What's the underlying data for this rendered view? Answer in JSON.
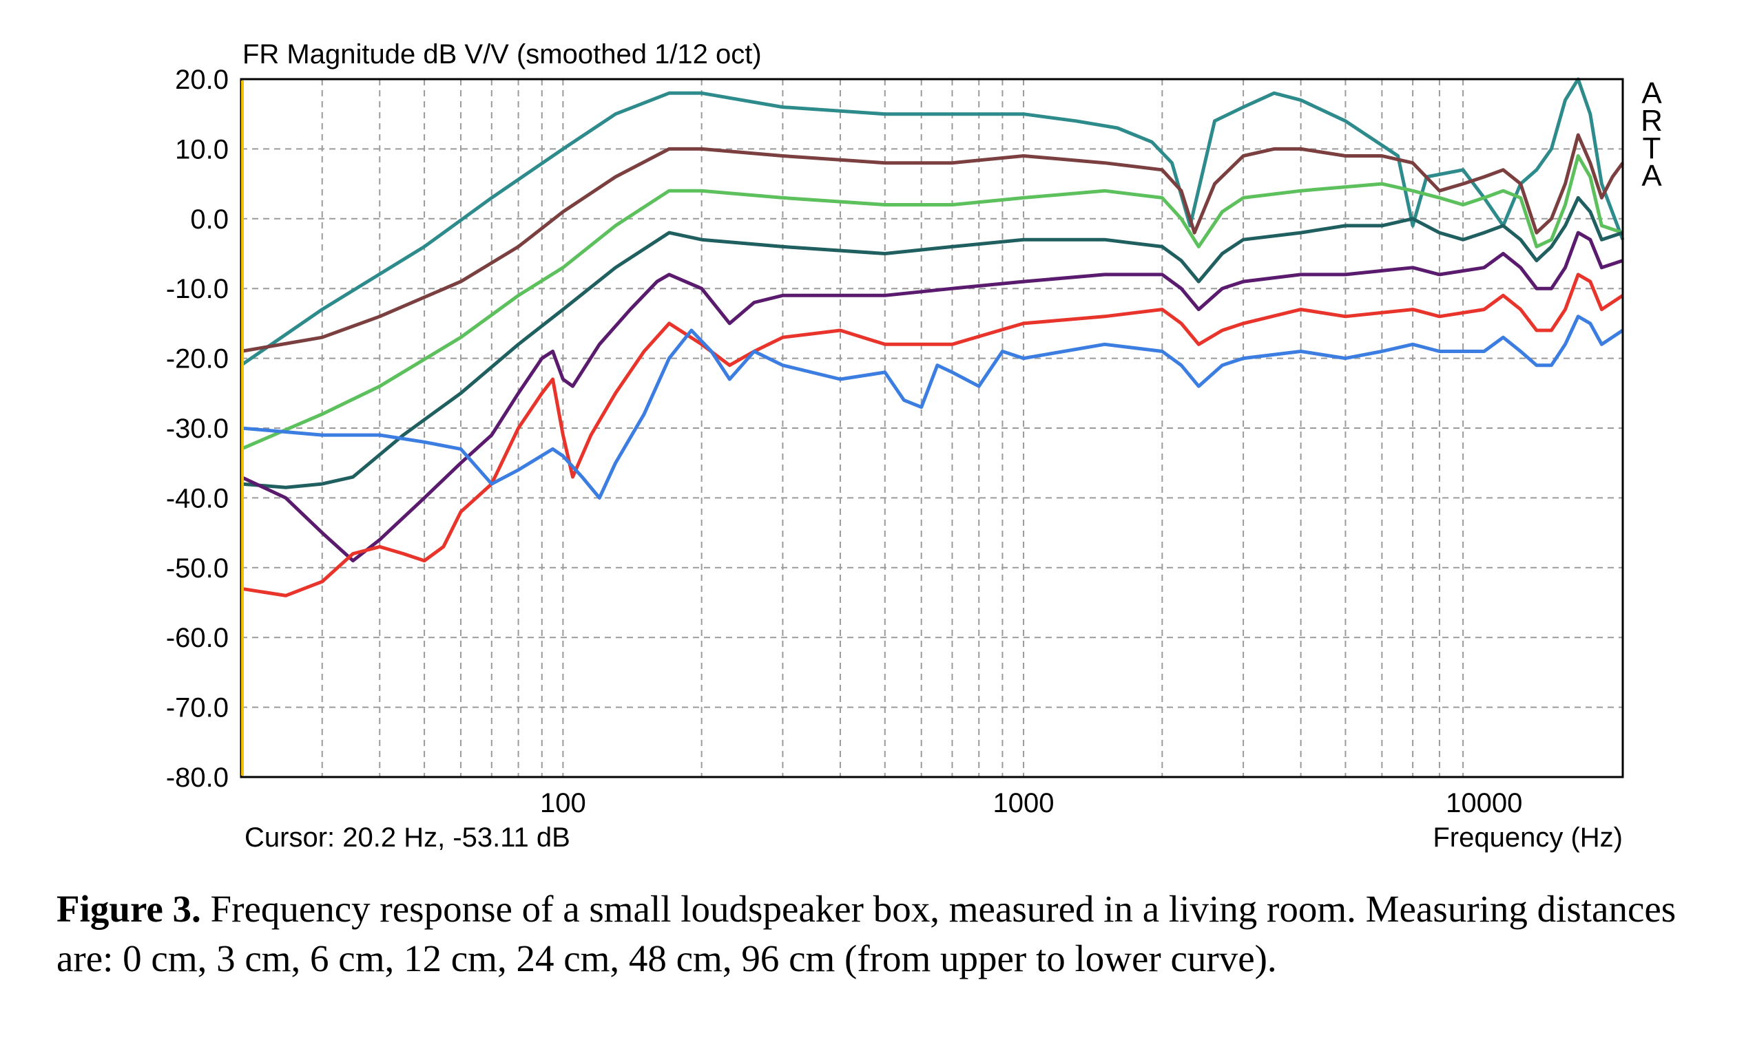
{
  "caption": {
    "label": "Figure 3.",
    "text": "Frequency response of a small loudspeaker box, measured in a living room. Measuring distances are: 0 cm, 3 cm, 6 cm, 12 cm, 24 cm, 48 cm, 96 cm (from upper to lower curve)."
  },
  "chart_data": {
    "type": "line",
    "title": "FR Magnitude dB V/V (smoothed 1/12 oct)",
    "xlabel": "Frequency (Hz)",
    "ylabel": "",
    "x_scale": "log",
    "xlim": [
      20,
      20000
    ],
    "ylim": [
      -80,
      20
    ],
    "x_ticks": [
      100,
      1000,
      10000
    ],
    "x_tick_labels": [
      "100",
      "1000",
      "10000"
    ],
    "y_ticks": [
      20,
      10,
      0,
      -10,
      -20,
      -30,
      -40,
      -50,
      -60,
      -70,
      -80
    ],
    "y_tick_labels": [
      "20.0",
      "10.0",
      "0.0",
      "-10.0",
      "-20.0",
      "-30.0",
      "-40.0",
      "-50.0",
      "-60.0",
      "-70.0",
      "-80.0"
    ],
    "grid": true,
    "cursor_readout": "Cursor: 20.2 Hz, -53.11 dB",
    "brand": "ARTA",
    "series": [
      {
        "color": "#2e8b8b",
        "points": [
          [
            20,
            -21
          ],
          [
            30,
            -13
          ],
          [
            50,
            -4
          ],
          [
            70,
            3
          ],
          [
            100,
            10
          ],
          [
            130,
            15
          ],
          [
            170,
            18
          ],
          [
            200,
            18
          ],
          [
            300,
            16
          ],
          [
            500,
            15
          ],
          [
            800,
            15
          ],
          [
            1000,
            15
          ],
          [
            1300,
            14
          ],
          [
            1600,
            13
          ],
          [
            1900,
            11
          ],
          [
            2100,
            8
          ],
          [
            2300,
            -1
          ],
          [
            2600,
            14
          ],
          [
            3000,
            16
          ],
          [
            3500,
            18
          ],
          [
            4000,
            17
          ],
          [
            5000,
            14
          ],
          [
            6500,
            9
          ],
          [
            7000,
            -1
          ],
          [
            7500,
            6
          ],
          [
            9000,
            7
          ],
          [
            10000,
            3
          ],
          [
            11000,
            -1
          ],
          [
            12000,
            5
          ],
          [
            13000,
            7
          ],
          [
            14000,
            10
          ],
          [
            15000,
            17
          ],
          [
            16000,
            20
          ],
          [
            17000,
            15
          ],
          [
            18000,
            5
          ],
          [
            20000,
            -3
          ]
        ]
      },
      {
        "color": "#7b3f3f",
        "points": [
          [
            20,
            -19
          ],
          [
            30,
            -17
          ],
          [
            40,
            -14
          ],
          [
            60,
            -9
          ],
          [
            80,
            -4
          ],
          [
            100,
            1
          ],
          [
            130,
            6
          ],
          [
            170,
            10
          ],
          [
            200,
            10
          ],
          [
            300,
            9
          ],
          [
            500,
            8
          ],
          [
            700,
            8
          ],
          [
            1000,
            9
          ],
          [
            1500,
            8
          ],
          [
            2000,
            7
          ],
          [
            2200,
            4
          ],
          [
            2350,
            -2
          ],
          [
            2600,
            5
          ],
          [
            3000,
            9
          ],
          [
            3500,
            10
          ],
          [
            4000,
            10
          ],
          [
            5000,
            9
          ],
          [
            6000,
            9
          ],
          [
            7000,
            8
          ],
          [
            8000,
            4
          ],
          [
            9000,
            5
          ],
          [
            10000,
            6
          ],
          [
            11000,
            7
          ],
          [
            12000,
            5
          ],
          [
            13000,
            -2
          ],
          [
            14000,
            0
          ],
          [
            15000,
            5
          ],
          [
            16000,
            12
          ],
          [
            17000,
            8
          ],
          [
            18000,
            3
          ],
          [
            19000,
            6
          ],
          [
            20000,
            8
          ]
        ]
      },
      {
        "color": "#5cc05c",
        "points": [
          [
            20,
            -33
          ],
          [
            30,
            -28
          ],
          [
            40,
            -24
          ],
          [
            60,
            -17
          ],
          [
            80,
            -11
          ],
          [
            100,
            -7
          ],
          [
            130,
            -1
          ],
          [
            170,
            4
          ],
          [
            200,
            4
          ],
          [
            300,
            3
          ],
          [
            500,
            2
          ],
          [
            700,
            2
          ],
          [
            1000,
            3
          ],
          [
            1500,
            4
          ],
          [
            2000,
            3
          ],
          [
            2200,
            0
          ],
          [
            2400,
            -4
          ],
          [
            2700,
            1
          ],
          [
            3000,
            3
          ],
          [
            4000,
            4
          ],
          [
            6000,
            5
          ],
          [
            7000,
            4
          ],
          [
            8000,
            3
          ],
          [
            9000,
            2
          ],
          [
            10000,
            3
          ],
          [
            11000,
            4
          ],
          [
            12000,
            3
          ],
          [
            13000,
            -4
          ],
          [
            14000,
            -3
          ],
          [
            15000,
            2
          ],
          [
            16000,
            9
          ],
          [
            17000,
            6
          ],
          [
            18000,
            -1
          ],
          [
            20000,
            -2
          ]
        ]
      },
      {
        "color": "#1f5f5f",
        "points": [
          [
            20,
            -38
          ],
          [
            25,
            -38.5
          ],
          [
            30,
            -38
          ],
          [
            35,
            -37
          ],
          [
            45,
            -31
          ],
          [
            60,
            -25
          ],
          [
            80,
            -18
          ],
          [
            100,
            -13
          ],
          [
            130,
            -7
          ],
          [
            170,
            -2
          ],
          [
            200,
            -3
          ],
          [
            300,
            -4
          ],
          [
            500,
            -5
          ],
          [
            700,
            -4
          ],
          [
            1000,
            -3
          ],
          [
            1500,
            -3
          ],
          [
            2000,
            -4
          ],
          [
            2200,
            -6
          ],
          [
            2400,
            -9
          ],
          [
            2700,
            -5
          ],
          [
            3000,
            -3
          ],
          [
            4000,
            -2
          ],
          [
            5000,
            -1
          ],
          [
            6000,
            -1
          ],
          [
            7000,
            0
          ],
          [
            8000,
            -2
          ],
          [
            9000,
            -3
          ],
          [
            10000,
            -2
          ],
          [
            11000,
            -1
          ],
          [
            12000,
            -3
          ],
          [
            13000,
            -6
          ],
          [
            14000,
            -4
          ],
          [
            15000,
            -1
          ],
          [
            16000,
            3
          ],
          [
            17000,
            1
          ],
          [
            18000,
            -3
          ],
          [
            20000,
            -2
          ]
        ]
      },
      {
        "color": "#5a1a6e",
        "points": [
          [
            20,
            -37
          ],
          [
            25,
            -40
          ],
          [
            30,
            -45
          ],
          [
            35,
            -49
          ],
          [
            40,
            -46
          ],
          [
            50,
            -40
          ],
          [
            60,
            -35
          ],
          [
            70,
            -31
          ],
          [
            80,
            -25
          ],
          [
            90,
            -20
          ],
          [
            95,
            -19
          ],
          [
            100,
            -23
          ],
          [
            105,
            -24
          ],
          [
            120,
            -18
          ],
          [
            140,
            -13
          ],
          [
            160,
            -9
          ],
          [
            170,
            -8
          ],
          [
            200,
            -10
          ],
          [
            230,
            -15
          ],
          [
            260,
            -12
          ],
          [
            300,
            -11
          ],
          [
            400,
            -11
          ],
          [
            500,
            -11
          ],
          [
            700,
            -10
          ],
          [
            1000,
            -9
          ],
          [
            1500,
            -8
          ],
          [
            2000,
            -8
          ],
          [
            2200,
            -10
          ],
          [
            2400,
            -13
          ],
          [
            2700,
            -10
          ],
          [
            3000,
            -9
          ],
          [
            4000,
            -8
          ],
          [
            5000,
            -8
          ],
          [
            7000,
            -7
          ],
          [
            8000,
            -8
          ],
          [
            10000,
            -7
          ],
          [
            11000,
            -5
          ],
          [
            12000,
            -7
          ],
          [
            13000,
            -10
          ],
          [
            14000,
            -10
          ],
          [
            15000,
            -7
          ],
          [
            16000,
            -2
          ],
          [
            17000,
            -3
          ],
          [
            18000,
            -7
          ],
          [
            20000,
            -6
          ]
        ]
      },
      {
        "color": "#e8342a",
        "points": [
          [
            20,
            -53
          ],
          [
            25,
            -54
          ],
          [
            30,
            -52
          ],
          [
            35,
            -48
          ],
          [
            40,
            -47
          ],
          [
            45,
            -48
          ],
          [
            50,
            -49
          ],
          [
            55,
            -47
          ],
          [
            60,
            -42
          ],
          [
            70,
            -38
          ],
          [
            80,
            -30
          ],
          [
            90,
            -25
          ],
          [
            95,
            -23
          ],
          [
            100,
            -31
          ],
          [
            105,
            -37
          ],
          [
            115,
            -31
          ],
          [
            130,
            -25
          ],
          [
            150,
            -19
          ],
          [
            170,
            -15
          ],
          [
            200,
            -18
          ],
          [
            230,
            -21
          ],
          [
            260,
            -19
          ],
          [
            300,
            -17
          ],
          [
            400,
            -16
          ],
          [
            500,
            -18
          ],
          [
            700,
            -18
          ],
          [
            1000,
            -15
          ],
          [
            1500,
            -14
          ],
          [
            2000,
            -13
          ],
          [
            2200,
            -15
          ],
          [
            2400,
            -18
          ],
          [
            2700,
            -16
          ],
          [
            3000,
            -15
          ],
          [
            4000,
            -13
          ],
          [
            5000,
            -14
          ],
          [
            7000,
            -13
          ],
          [
            8000,
            -14
          ],
          [
            10000,
            -13
          ],
          [
            11000,
            -11
          ],
          [
            12000,
            -13
          ],
          [
            13000,
            -16
          ],
          [
            14000,
            -16
          ],
          [
            15000,
            -13
          ],
          [
            16000,
            -8
          ],
          [
            17000,
            -9
          ],
          [
            18000,
            -13
          ],
          [
            20000,
            -11
          ]
        ]
      },
      {
        "color": "#3b7de0",
        "points": [
          [
            20,
            -30
          ],
          [
            30,
            -31
          ],
          [
            40,
            -31
          ],
          [
            50,
            -32
          ],
          [
            60,
            -33
          ],
          [
            70,
            -38
          ],
          [
            80,
            -36
          ],
          [
            95,
            -33
          ],
          [
            100,
            -34
          ],
          [
            110,
            -37
          ],
          [
            120,
            -40
          ],
          [
            130,
            -35
          ],
          [
            150,
            -28
          ],
          [
            170,
            -20
          ],
          [
            190,
            -16
          ],
          [
            210,
            -19
          ],
          [
            230,
            -23
          ],
          [
            260,
            -19
          ],
          [
            300,
            -21
          ],
          [
            400,
            -23
          ],
          [
            500,
            -22
          ],
          [
            550,
            -26
          ],
          [
            600,
            -27
          ],
          [
            650,
            -21
          ],
          [
            700,
            -22
          ],
          [
            800,
            -24
          ],
          [
            900,
            -19
          ],
          [
            1000,
            -20
          ],
          [
            1500,
            -18
          ],
          [
            2000,
            -19
          ],
          [
            2200,
            -21
          ],
          [
            2400,
            -24
          ],
          [
            2700,
            -21
          ],
          [
            3000,
            -20
          ],
          [
            4000,
            -19
          ],
          [
            5000,
            -20
          ],
          [
            6000,
            -19
          ],
          [
            7000,
            -18
          ],
          [
            8000,
            -19
          ],
          [
            10000,
            -19
          ],
          [
            11000,
            -17
          ],
          [
            12000,
            -19
          ],
          [
            13000,
            -21
          ],
          [
            14000,
            -21
          ],
          [
            15000,
            -18
          ],
          [
            16000,
            -14
          ],
          [
            17000,
            -15
          ],
          [
            18000,
            -18
          ],
          [
            20000,
            -16
          ]
        ]
      }
    ]
  }
}
